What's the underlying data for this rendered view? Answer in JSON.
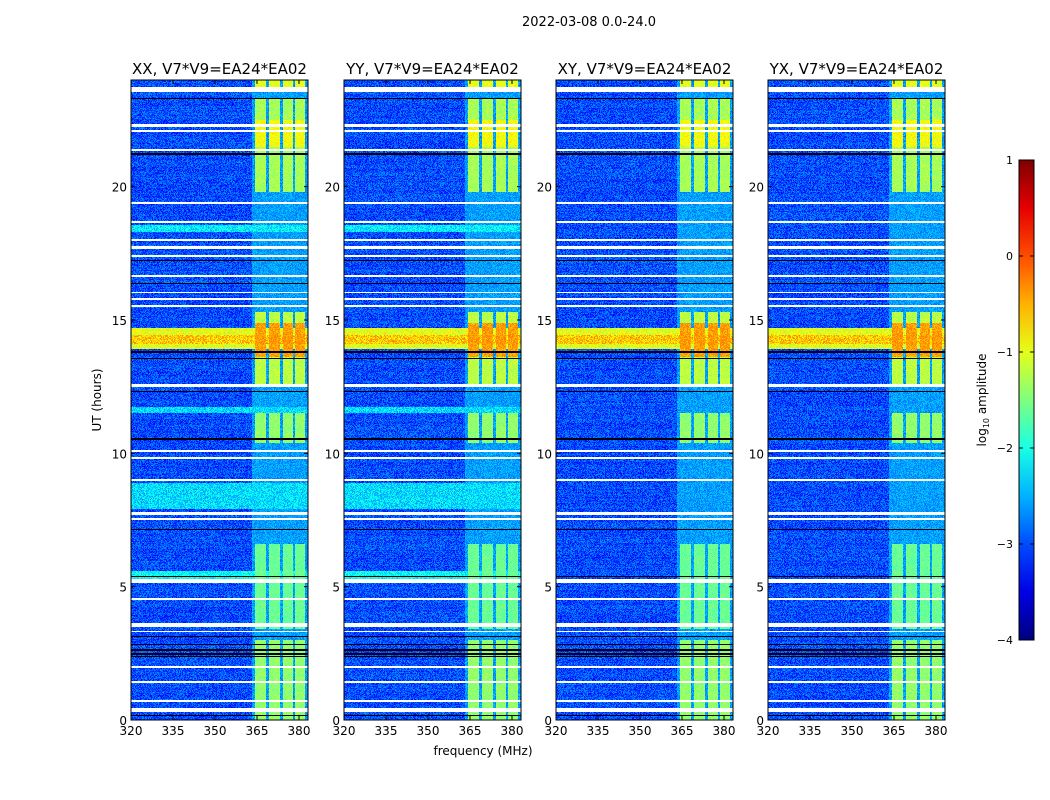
{
  "chart_data": {
    "type": "heatmap",
    "title": "2022-03-08 0.0-24.0",
    "xlabel": "frequency (MHz)",
    "ylabel": "UT (hours)",
    "xlim": [
      320,
      383.2
    ],
    "ylim": [
      0,
      24
    ],
    "xticks": [
      "320",
      "335",
      "350",
      "365",
      "380"
    ],
    "xtick_values": [
      320,
      335,
      350,
      365,
      380
    ],
    "yticks": [
      "0",
      "5",
      "10",
      "15",
      "20"
    ],
    "ytick_values": [
      0,
      5,
      10,
      15,
      20
    ],
    "colorbar": {
      "label": "log10 amplitude",
      "label_main": "log",
      "label_sub": "10",
      "label_rest": " amplitude",
      "range": [
        -4,
        1
      ],
      "ticks": [
        "1",
        "0",
        "−1",
        "−2",
        "−3",
        "−4"
      ],
      "tick_values": [
        1,
        0,
        -1,
        -2,
        -3,
        -4
      ],
      "colormap": "jet"
    },
    "background_level": -3.0,
    "panels": [
      {
        "title": "XX, V7*V9=EA24*EA02",
        "extra_bands": true
      },
      {
        "title": "YY, V7*V9=EA24*EA02",
        "extra_bands": true
      },
      {
        "title": "XY, V7*V9=EA24*EA02",
        "extra_bands": false
      },
      {
        "title": "YX, V7*V9=EA24*EA02",
        "extra_bands": false
      }
    ],
    "rfi_channels_mhz": [
      [
        364.2,
        368.0
      ],
      [
        369.0,
        373.0
      ],
      [
        374.0,
        377.8
      ],
      [
        378.5,
        382.0
      ]
    ],
    "rfi_active_hours": [
      [
        0,
        3.0,
        -1.4
      ],
      [
        3.4,
        6.6,
        -1.6
      ],
      [
        10.4,
        11.5,
        -1.4
      ],
      [
        12.5,
        15.3,
        -1.2
      ],
      [
        13.6,
        14.9,
        -0.4
      ],
      [
        19.8,
        23.3,
        -1.3
      ],
      [
        21.5,
        22.5,
        -0.9
      ],
      [
        23.6,
        24,
        -1.0
      ]
    ],
    "broadband_hours": [
      [
        13.9,
        14.7,
        -1.0
      ],
      [
        14.1,
        14.45,
        -0.6
      ]
    ],
    "pol_only_bands_hours": [
      [
        7.9,
        8.9,
        -2.3
      ],
      [
        5.2,
        5.6,
        -2.1
      ],
      [
        11.5,
        11.75,
        -2.3
      ],
      [
        18.3,
        18.55,
        -2.2
      ]
    ],
    "flagged_white_hours": [
      [
        23.55,
        23.75
      ],
      [
        22.25,
        22.35
      ],
      [
        22.05,
        22.12
      ],
      [
        21.35,
        21.42
      ],
      [
        19.35,
        19.42
      ],
      [
        18.65,
        18.72
      ],
      [
        17.95,
        18.02
      ],
      [
        17.65,
        17.78
      ],
      [
        17.35,
        17.42
      ],
      [
        16.6,
        16.68
      ],
      [
        16.0,
        16.05
      ],
      [
        15.75,
        15.82
      ],
      [
        15.5,
        15.56
      ],
      [
        12.48,
        12.6
      ],
      [
        10.05,
        10.12
      ],
      [
        9.8,
        9.87
      ],
      [
        8.95,
        9.05
      ],
      [
        7.7,
        7.8
      ],
      [
        7.5,
        7.56
      ],
      [
        5.12,
        5.28
      ],
      [
        4.5,
        4.58
      ],
      [
        3.47,
        3.62
      ],
      [
        3.3,
        3.35
      ],
      [
        1.95,
        2.02
      ],
      [
        1.4,
        1.48
      ],
      [
        0.68,
        0.74
      ],
      [
        0.3,
        0.45
      ]
    ],
    "flagged_black_hours": [
      [
        23.28,
        23.34
      ],
      [
        21.18,
        21.25
      ],
      [
        17.2,
        17.25
      ],
      [
        16.35,
        16.4
      ],
      [
        13.75,
        13.82
      ],
      [
        13.52,
        13.58
      ],
      [
        12.3,
        12.35
      ],
      [
        10.5,
        10.58
      ],
      [
        7.12,
        7.18
      ],
      [
        5.35,
        5.4
      ],
      [
        3.1,
        3.15
      ],
      [
        2.8,
        2.85
      ],
      [
        2.6,
        2.65
      ],
      [
        2.45,
        2.5
      ],
      [
        2.35,
        2.4
      ],
      [
        0.15,
        0.2
      ]
    ]
  }
}
